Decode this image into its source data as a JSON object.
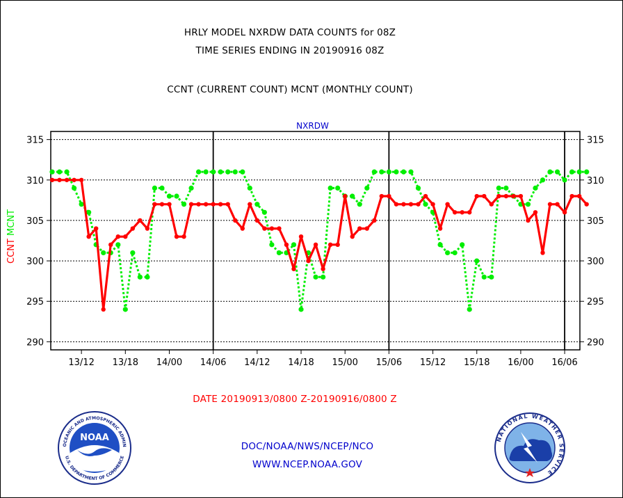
{
  "header": {
    "title_line1": "HRLY MODEL NXRDW DATA COUNTS for 08Z",
    "title_line2": "TIME SERIES ENDING IN 20190916 08Z",
    "title_line3": "CCNT (CURRENT COUNT) MCNT (MONTHLY COUNT)"
  },
  "footer": {
    "date_range": "DATE 20190913/0800 Z-20190916/0800 Z",
    "org_path": "DOC/NOAA/NWS/NCEP/NCO",
    "website": "WWW.NCEP.NOAA.GOV"
  },
  "logos": {
    "noaa_text": "NOAA",
    "noaa_ring_top": "NATIONAL OCEANIC AND ATMOSPHERIC ADMINISTRATION",
    "noaa_ring_bottom": "U.S. DEPARTMENT OF COMMERCE",
    "nws_ring": "NATIONAL WEATHER SERVICE"
  },
  "colors": {
    "ccnt": "#ff0000",
    "mcnt": "#00ee00",
    "title_blue": "#0000cc",
    "axis": "#000000"
  },
  "chart_data": {
    "type": "line",
    "title": "NXRDW",
    "ylabel_series": [
      "CCNT",
      "MCNT"
    ],
    "ylim": [
      289,
      316
    ],
    "yticks": [
      290,
      295,
      300,
      305,
      310,
      315
    ],
    "x_tick_labels": [
      "13/12",
      "13/18",
      "14/00",
      "14/06",
      "14/12",
      "14/18",
      "15/00",
      "15/06",
      "15/12",
      "15/18",
      "16/00",
      "16/06"
    ],
    "x_start": "13/08",
    "day_boundaries": [
      "14/06",
      "15/06",
      "16/06"
    ],
    "grid": true,
    "series": [
      {
        "name": "CCNT",
        "color": "#ff0000",
        "values": [
          310,
          310,
          310,
          310,
          310,
          303,
          304,
          294,
          302,
          303,
          303,
          304,
          305,
          304,
          307,
          307,
          307,
          303,
          303,
          307,
          307,
          307,
          307,
          307,
          307,
          305,
          304,
          307,
          305,
          304,
          304,
          304,
          302,
          299,
          303,
          300,
          302,
          299,
          302,
          302,
          308,
          303,
          304,
          304,
          305,
          308,
          308,
          307,
          307,
          307,
          307,
          308,
          307,
          304,
          307,
          306,
          306,
          306,
          308,
          308,
          307,
          308,
          308,
          308,
          308,
          305,
          306,
          301,
          307,
          307,
          306,
          308,
          308,
          307
        ]
      },
      {
        "name": "MCNT",
        "color": "#00ee00",
        "values": [
          311,
          311,
          311,
          309,
          307,
          306,
          302,
          301,
          301,
          302,
          294,
          301,
          298,
          298,
          309,
          309,
          308,
          308,
          307,
          309,
          311,
          311,
          311,
          311,
          311,
          311,
          311,
          309,
          307,
          306,
          302,
          301,
          301,
          302,
          294,
          301,
          298,
          298,
          309,
          309,
          308,
          308,
          307,
          309,
          311,
          311,
          311,
          311,
          311,
          311,
          309,
          307,
          306,
          302,
          301,
          301,
          302,
          294,
          300,
          298,
          298,
          309,
          309,
          308,
          307,
          307,
          309,
          310,
          311,
          311,
          310,
          311,
          311,
          311
        ]
      }
    ]
  }
}
